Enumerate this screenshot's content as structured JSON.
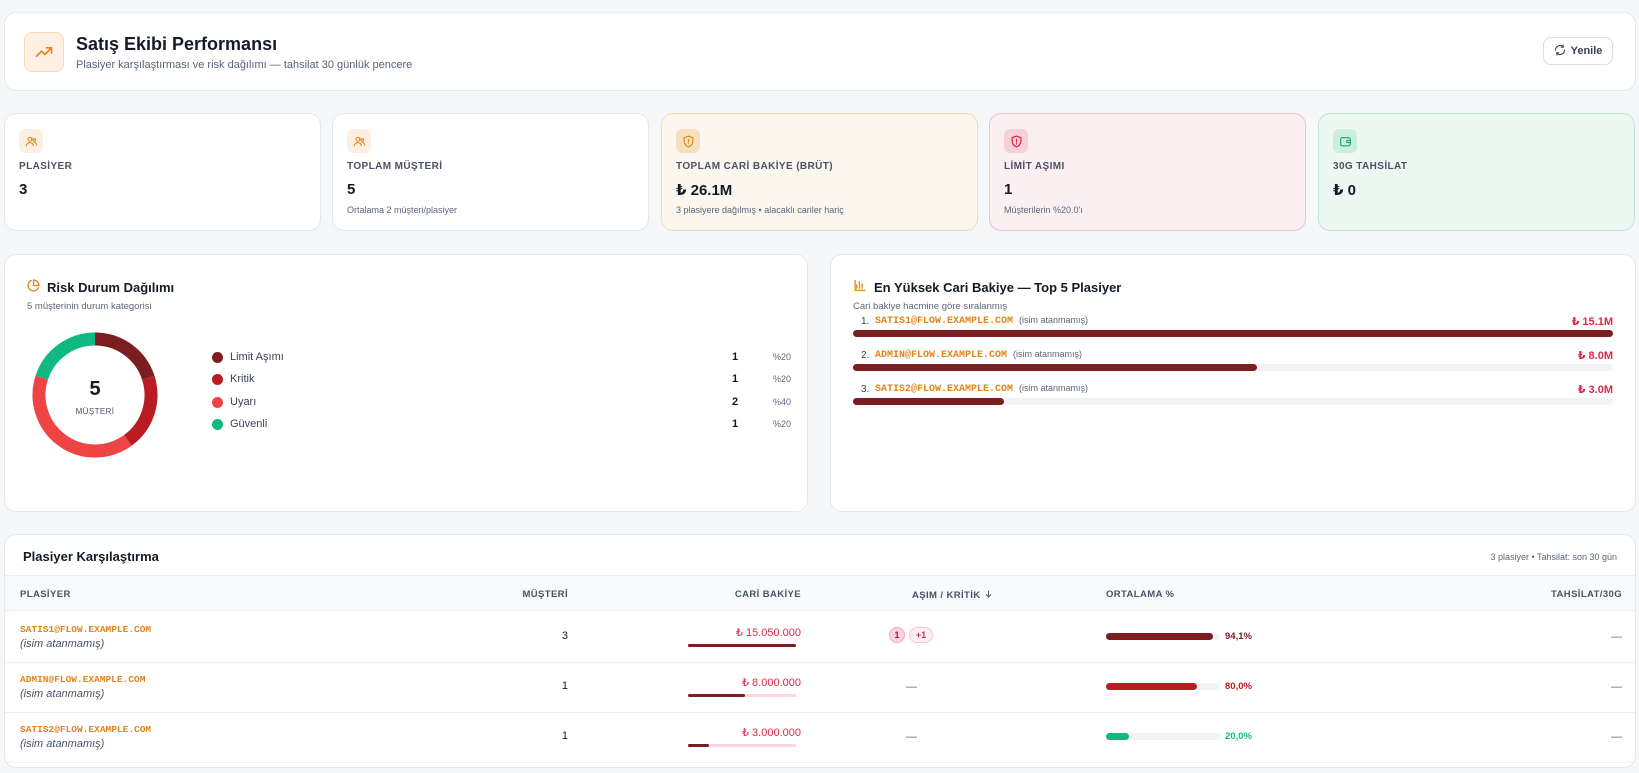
{
  "header": {
    "title": "Satış Ekibi Performansı",
    "subtitle": "Plasiyer karşılaştırması ve risk dağılımı — tahsilat 30 günlük pencere",
    "refresh_label": "Yenile",
    "logo_icon": "trending-up-icon",
    "refresh_icon": "refresh-icon"
  },
  "kpis": [
    {
      "label": "PLASİYER",
      "value": "3",
      "hint": "",
      "icon": "users-icon",
      "bg": "#ffffff",
      "border": "#e4e7ec",
      "icon_bg": "#fdf0e2",
      "icon_color": "#e0841c"
    },
    {
      "label": "TOPLAM MÜŞTERİ",
      "value": "5",
      "hint": "Ortalama 2 müşteri/plasiyer",
      "icon": "users-icon",
      "bg": "#ffffff",
      "border": "#e4e7ec",
      "icon_bg": "#fdf0e2",
      "icon_color": "#e0841c"
    },
    {
      "label": "TOPLAM CARİ BAKİYE (BRÜT)",
      "value": "₺ 26.1M",
      "hint": "3 plasiyere dağılmış • alacaklı cariler hariç",
      "icon": "shield-icon",
      "bg": "#fbf6ee",
      "border": "#f3dcb4",
      "icon_bg": "#f7e0be",
      "icon_color": "#d9861e"
    },
    {
      "label": "LİMİT AŞIMI",
      "value": "1",
      "hint": "Müşterilerin %20.0'ı",
      "icon": "shield-alert-icon",
      "bg": "#fbeff2",
      "border": "#f5bfcb",
      "icon_bg": "#f8d0da",
      "icon_color": "#d8234a"
    },
    {
      "label": "30G TAHSİLAT",
      "value": "₺ 0",
      "hint": "",
      "icon": "wallet-icon",
      "bg": "#edf8f3",
      "border": "#bfe6d4",
      "icon_bg": "#cdeedf",
      "icon_color": "#17a673"
    }
  ],
  "risk": {
    "title": "Risk Durum Dağılımı",
    "subtitle": "5 müşterinin durum kategorisi",
    "icon": "pie-chart-icon",
    "total": "5",
    "total_label": "MÜŞTERİ",
    "items": [
      {
        "name": "Limit Aşımı",
        "count": 1,
        "percent": "%20",
        "color": "#7b1d21"
      },
      {
        "name": "Kritik",
        "count": 1,
        "percent": "%20",
        "color": "#b91c22"
      },
      {
        "name": "Uyarı",
        "count": 2,
        "percent": "%40",
        "color": "#ef4444"
      },
      {
        "name": "Güvenli",
        "count": 1,
        "percent": "%20",
        "color": "#10b981"
      }
    ]
  },
  "top5": {
    "title": "En Yüksek Cari Bakiye — Top 5 Plasiyer",
    "subtitle": "Cari bakiye hacmine göre sıralanmış",
    "icon": "bar-chart-icon",
    "rows": [
      {
        "rank": "1.",
        "email": "SATIS1@FLOW.EXAMPLE.COM",
        "name": "(isim atanmamış)",
        "amount": "₺ 15.1M",
        "value": 15.05
      },
      {
        "rank": "2.",
        "email": "ADMIN@FLOW.EXAMPLE.COM",
        "name": "(isim atanmamış)",
        "amount": "₺ 8.0M",
        "value": 8.0
      },
      {
        "rank": "3.",
        "email": "SATIS2@FLOW.EXAMPLE.COM",
        "name": "(isim atanmamış)",
        "amount": "₺ 3.0M",
        "value": 3.0
      }
    ]
  },
  "table": {
    "title": "Plasiyer Karşılaştırma",
    "meta": "3 plasiyer • Tahsilat: son 30 gün",
    "headers": {
      "plasiyer": "PLASİYER",
      "musteri": "MÜŞTERİ",
      "bakiye": "CARİ BAKİYE",
      "asim": "AŞIM / KRİTİK",
      "ortalama": "ORTALAMA %",
      "tahsilat": "TAHSİLAT/30G"
    },
    "sort_icon": "arrow-down-icon",
    "rows": [
      {
        "email": "SATIS1@FLOW.EXAMPLE.COM",
        "name": "(isim atanmamış)",
        "count": "3",
        "balance": "₺ 15.050.000",
        "balance_share": 1.0,
        "badges": [
          "1",
          "+1"
        ],
        "asim": "",
        "avg": "94,1%",
        "avg_value": 0.941,
        "avg_color": "#7b1d21",
        "tahsilat": "—"
      },
      {
        "email": "ADMIN@FLOW.EXAMPLE.COM",
        "name": "(isim atanmamış)",
        "count": "1",
        "balance": "₺ 8.000.000",
        "balance_share": 0.532,
        "badges": [],
        "asim": "—",
        "avg": "80,0%",
        "avg_value": 0.8,
        "avg_color": "#b91c22",
        "tahsilat": "—"
      },
      {
        "email": "SATIS2@FLOW.EXAMPLE.COM",
        "name": "(isim atanmamış)",
        "count": "1",
        "balance": "₺ 3.000.000",
        "balance_share": 0.199,
        "badges": [],
        "asim": "—",
        "avg": "20,0%",
        "avg_value": 0.2,
        "avg_color": "#10b981",
        "tahsilat": "—"
      }
    ]
  }
}
